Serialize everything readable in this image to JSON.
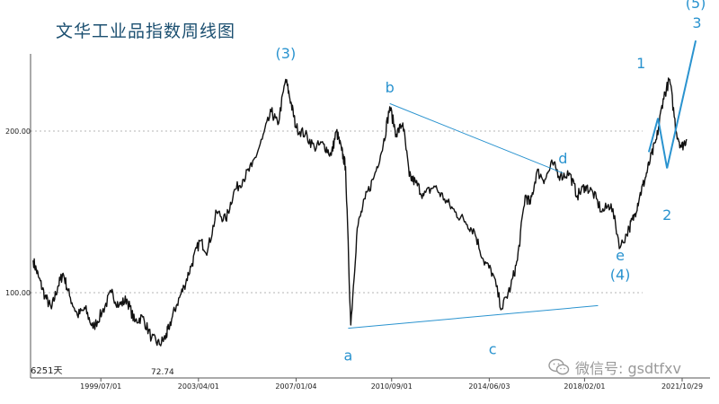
{
  "header": {
    "title": "文华工业品指数周线图"
  },
  "watermark": {
    "text": "微信号: gsdtfxv",
    "icon": "wechat-icon"
  },
  "chart_data": {
    "type": "line",
    "title": "文华工业品指数周线图",
    "xlabel": "",
    "ylabel": "",
    "ylim": [
      55,
      240
    ],
    "xlim": [
      1996.8,
      2022.9
    ],
    "grid": "dotted horizontal lines at 100.00 and 200.00",
    "y_ticks": [
      {
        "value": 100,
        "label": "100.00"
      },
      {
        "value": 200,
        "label": "200.00"
      }
    ],
    "x_ticks": [
      {
        "x": 1999.5,
        "label": "1999/07/01"
      },
      {
        "x": 2003.25,
        "label": "2003/04/01"
      },
      {
        "x": 2007.0,
        "label": "2007/01/04"
      },
      {
        "x": 2010.67,
        "label": "2010/09/01"
      },
      {
        "x": 2014.42,
        "label": "2014/06/03"
      },
      {
        "x": 2018.08,
        "label": "2018/02/01"
      },
      {
        "x": 2021.83,
        "label": "2021/10/29"
      }
    ],
    "series": [
      {
        "x": [
          1996.9,
          1997.1,
          1997.35,
          1997.6,
          1997.85,
          1998.05,
          1998.3,
          1998.6,
          1998.9,
          1999.2,
          1999.55,
          1999.9,
          2000.2,
          2000.5,
          2000.8,
          2001.1,
          2001.45,
          2001.75,
          2002.0,
          2002.1,
          2002.4,
          2002.7,
          2003.0,
          2003.3,
          2003.6,
          2003.95,
          2004.3,
          2004.6,
          2004.95,
          2005.3,
          2005.7,
          2006.05,
          2006.3,
          2006.6,
          2006.8,
          2007.0,
          2007.35,
          2007.7,
          2008.05,
          2008.35,
          2008.55,
          2008.75,
          2008.9,
          2009.1,
          2009.35,
          2009.65,
          2010.0,
          2010.35,
          2010.6,
          2010.85,
          2011.1,
          2011.35,
          2011.6,
          2011.9,
          2012.3,
          2012.7,
          2013.1,
          2013.5,
          2013.85,
          2014.2,
          2014.55,
          2014.9,
          2015.25,
          2015.5,
          2015.8,
          2016.0,
          2016.25,
          2016.55,
          2016.85,
          2017.15,
          2017.5,
          2017.8,
          2018.1,
          2018.4,
          2018.75,
          2019.1,
          2019.45,
          2019.8,
          2020.0,
          2020.2,
          2020.4,
          2020.6,
          2020.85,
          2021.1,
          2021.35,
          2021.6,
          2021.8,
          2022.0
        ],
        "values": [
          120,
          110,
          98,
          90,
          104,
          112,
          98,
          86,
          90,
          78,
          88,
          100,
          92,
          96,
          82,
          85,
          72,
          68,
          72.74,
          78,
          92,
          104,
          118,
          132,
          126,
          150,
          145,
          162,
          170,
          178,
          195,
          212,
          204,
          232,
          218,
          202,
          198,
          190,
          192,
          185,
          200,
          188,
          178,
          80,
          140,
          158,
          172,
          192,
          215,
          198,
          205,
          172,
          168,
          160,
          166,
          158,
          150,
          144,
          138,
          120,
          112,
          90,
          104,
          120,
          160,
          155,
          175,
          170,
          180,
          172,
          174,
          160,
          166,
          162,
          150,
          155,
          128,
          140,
          148,
          160,
          170,
          182,
          195,
          220,
          232,
          200,
          190,
          195
        ]
      }
    ],
    "annotations": {
      "wave_labels": [
        {
          "text": "(3)",
          "x": 2006.6,
          "y": 245
        },
        {
          "text": "b",
          "x": 2010.6,
          "y": 224
        },
        {
          "text": "d",
          "x": 2017.25,
          "y": 180
        },
        {
          "text": "1",
          "x": 2020.25,
          "y": 239
        },
        {
          "text": "(5)",
          "x": 2022.35,
          "y": 276
        },
        {
          "text": "3",
          "x": 2022.4,
          "y": 264
        },
        {
          "text": "a",
          "x": 2009.0,
          "y": 58
        },
        {
          "text": "c",
          "x": 2014.55,
          "y": 62
        },
        {
          "text": "e",
          "x": 2019.45,
          "y": 120
        },
        {
          "text": "(4)",
          "x": 2019.45,
          "y": 108
        },
        {
          "text": "2",
          "x": 2021.25,
          "y": 145
        }
      ],
      "trend_lines": [
        {
          "x1": 2010.6,
          "y1": 217,
          "x2": 2017.25,
          "y2": 174
        },
        {
          "x1": 2009.0,
          "y1": 78,
          "x2": 2018.6,
          "y2": 92
        }
      ],
      "projection": {
        "x": [
          2020.55,
          2020.9,
          2021.25,
          2022.35
        ],
        "values": [
          187,
          208,
          177,
          256
        ]
      },
      "bar_count_label": "6251天",
      "low_label": "72.74"
    }
  }
}
